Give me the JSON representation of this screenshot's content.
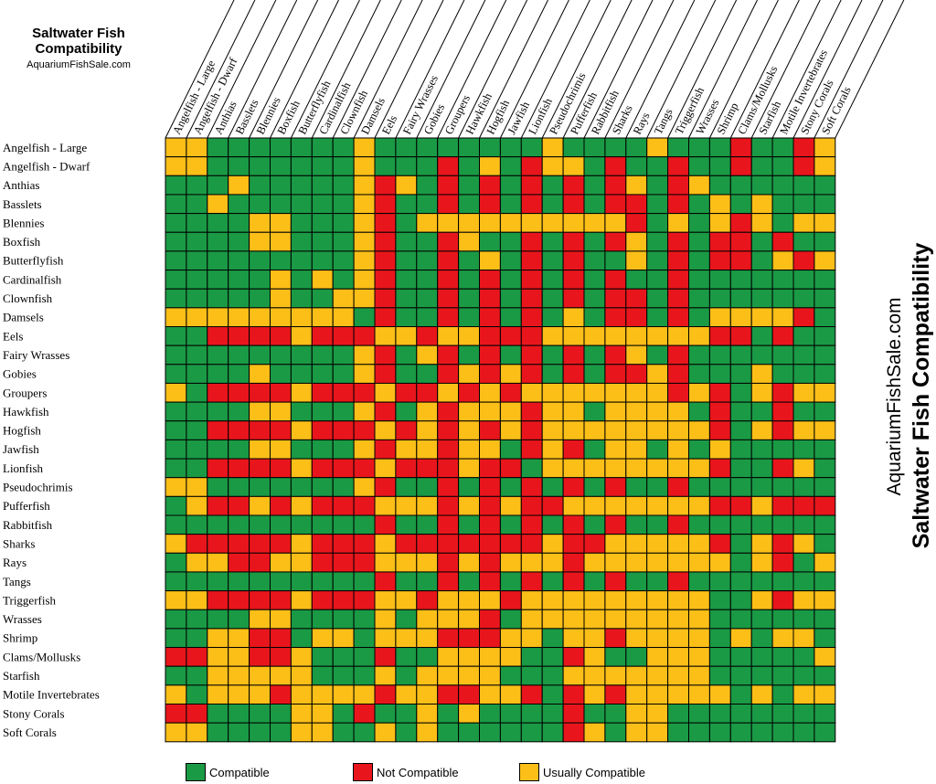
{
  "header": {
    "title": "Saltwater Fish Compatibility",
    "site": "AquariumFishSale.com"
  },
  "side": {
    "site": "AquariumFishSale.com",
    "title": "Saltwater Fish Compatibility"
  },
  "colors": {
    "C": "#1a9a45",
    "N": "#e8161c",
    "U": "#fbbf18"
  },
  "legend": {
    "compatible": "Compatible",
    "not_compatible": "Not Compatible",
    "usually_compatible": "Usually Compatible"
  },
  "chart_data": {
    "type": "heatmap",
    "categories": [
      "Angelfish - Large",
      "Angelfish - Dwarf",
      "Anthias",
      "Basslets",
      "Blennies",
      "Boxfish",
      "Butterflyfish",
      "Cardinalfish",
      "Clownfish",
      "Damsels",
      "Eels",
      "Fairy Wrasses",
      "Gobies",
      "Groupers",
      "Hawkfish",
      "Hogfish",
      "Jawfish",
      "Lionfish",
      "Pseudochrimis",
      "Pufferfish",
      "Rabbitfish",
      "Sharks",
      "Rays",
      "Tangs",
      "Triggerfish",
      "Wrasses",
      "Shrimp",
      "Clams/Mollusks",
      "Starfish",
      "Motile Invertebrates",
      "Stony Corals",
      "Soft Corals"
    ],
    "legend": {
      "C": "Compatible",
      "N": "Not Compatible",
      "U": "Usually Compatible"
    },
    "matrix": [
      "UUCCCCCCCUCCCCCCCCUCCCCUCCCNCCNU",
      "UUCCCCCCCUCCCNCUCNUUCNCCNCCNCCNU",
      "CCCUCCCCCUNUCNCNCNCNCNUCNUCCCCCC",
      "CCUCCCCCCUNCCNCNCNCNCNNCNCUCUCCC",
      "CCCCUUCCCUNCUUUUUUUUUUNCUCUNUCUU",
      "CCCCUUCCCUNCCNUCCNCNCNUCNCNNCNCC",
      "CCCCCCCCCUNCCNCUCNCNCCUCNCNNCUNU",
      "CCCCCUCUCUNCCNCNCNCNCNCCNCCCCCCC",
      "CCCCCUCCUUNCCNCNCNCNCNNCNCCCCCCC",
      "UUUUUUUUUCNCCNCNCNCUCNNCNCUUUUNC",
      "CCNNNNUNNNUUNUUNNNUUUUUUUUNNCNCC",
      "CCCCCCCCCUNCUNCNCNCNCNUCNCCCCCCC",
      "CCCCUCCCCUNCCNUNUNCNCNNUNCCCUCCC",
      "UCNNNNUNNNUNNUNUNUUUUUUUNUNCUNUU",
      "CCCCUUCCCUNCUNUUUNUUCUUUUCNCCNCC",
      "CCNNNNUNNNUNUNUNUNUUUUUUUUNCUNUU",
      "CCCCUUCCCUNUUNUUCNUNCUUCUCUCCCCC",
      "CCNNNNUNNNUNNNUNNCUUUUUUUUNCCNUC",
      "UUCCCCCCCUNCCNCNCNCNCNCCNCCCCCCC",
      "CUNNUNUNNNUUUNUNUNNUUUUUUUNNUNNN",
      "CCCCCCCCCCNCCNCNCNCNCNCCNCCCCCCC",
      "UNNNNNUNNNUNNNNNNNUNNUUUUUNCUNUC",
      "CUUNNUUNNNUUUNUNUUUNUUUUUUUCUNCU",
      "CCCCCCCCCCNCCNCNCNCNCNCCNCCCCCCC",
      "UUNNNNUNNNUUNUUUNUUUUUUUUUCCUNUU",
      "CCCCUUCCCCUCUUUNCUUUUUUUUUCCCCCC",
      "CCUUNNCUUCUUUNNNUUCUUNUUUUCUCUUC",
      "NNUUNNUCCCNCCUUUUCCNUCCUUUCCCCCU",
      "CCUUUUUCCCUCUUUUCCCUUUUUUUCCCCCC",
      "UCUUUNUUUUNUUNNUUNCNUNUUUUUCUCUU",
      "NNCCCCUUCNCCUCUCCCCNCCUUCCCCCCCC",
      "UUCCCCUUCCUCUCCCCCCNUCUUCCCCCCCC"
    ]
  }
}
